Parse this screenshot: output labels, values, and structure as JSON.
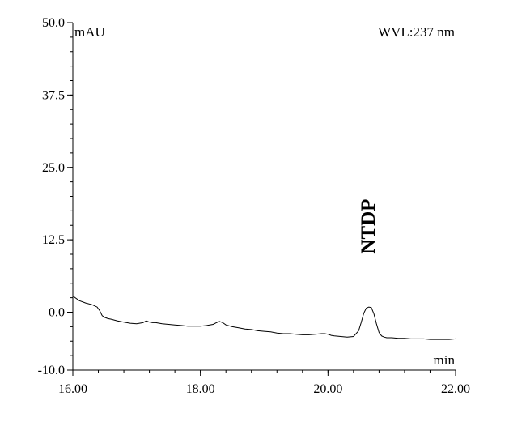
{
  "chart_data": {
    "type": "line",
    "y_unit": "mAU",
    "x_unit": "min",
    "wavelength_label": "WVL:237 nm",
    "xlim": [
      16.0,
      22.0
    ],
    "ylim": [
      -10.0,
      50.0
    ],
    "x_ticks": [
      {
        "value": 16.0,
        "label": "16.00"
      },
      {
        "value": 18.0,
        "label": "18.00"
      },
      {
        "value": 20.0,
        "label": "20.00"
      },
      {
        "value": 22.0,
        "label": "22.00"
      }
    ],
    "y_ticks": [
      {
        "value": 50.0,
        "label": "50.0"
      },
      {
        "value": 37.5,
        "label": "37.5"
      },
      {
        "value": 25.0,
        "label": "25.0"
      },
      {
        "value": 12.5,
        "label": "12.5"
      },
      {
        "value": 0.0,
        "label": "0.0"
      },
      {
        "value": -10.0,
        "label": "-10.0"
      }
    ],
    "x_minor_step": 0.4,
    "y_minor_step": 2.5,
    "series": [
      {
        "color": "#000000",
        "x": [
          16.0,
          16.1,
          16.2,
          16.3,
          16.38,
          16.42,
          16.46,
          16.5,
          16.55,
          16.6,
          16.7,
          16.8,
          16.9,
          17.0,
          17.1,
          17.15,
          17.2,
          17.25,
          17.3,
          17.4,
          17.5,
          17.6,
          17.7,
          17.8,
          17.9,
          18.0,
          18.1,
          18.2,
          18.25,
          18.3,
          18.35,
          18.4,
          18.5,
          18.6,
          18.7,
          18.8,
          18.9,
          19.0,
          19.1,
          19.2,
          19.3,
          19.4,
          19.5,
          19.6,
          19.7,
          19.8,
          19.9,
          19.95,
          20.0,
          20.05,
          20.1,
          20.2,
          20.3,
          20.4,
          20.48,
          20.52,
          20.56,
          20.6,
          20.64,
          20.68,
          20.72,
          20.76,
          20.8,
          20.84,
          20.88,
          20.92,
          21.0,
          21.1,
          21.2,
          21.3,
          21.4,
          21.5,
          21.6,
          21.7,
          21.8,
          21.9,
          22.0
        ],
        "y": [
          2.8,
          2.0,
          1.6,
          1.3,
          0.9,
          0.3,
          -0.6,
          -0.9,
          -1.1,
          -1.2,
          -1.5,
          -1.7,
          -1.9,
          -2.0,
          -1.8,
          -1.5,
          -1.7,
          -1.8,
          -1.8,
          -2.0,
          -2.1,
          -2.2,
          -2.3,
          -2.4,
          -2.4,
          -2.4,
          -2.3,
          -2.1,
          -1.8,
          -1.6,
          -1.8,
          -2.2,
          -2.5,
          -2.7,
          -2.9,
          -3.0,
          -3.2,
          -3.3,
          -3.4,
          -3.6,
          -3.7,
          -3.7,
          -3.8,
          -3.9,
          -3.9,
          -3.8,
          -3.7,
          -3.7,
          -3.8,
          -4.0,
          -4.1,
          -4.2,
          -4.3,
          -4.2,
          -3.2,
          -1.8,
          -0.2,
          0.7,
          0.9,
          0.8,
          -0.3,
          -2.0,
          -3.5,
          -4.1,
          -4.3,
          -4.4,
          -4.4,
          -4.5,
          -4.5,
          -4.6,
          -4.6,
          -4.6,
          -4.7,
          -4.7,
          -4.7,
          -4.7,
          -4.6
        ]
      }
    ],
    "annotations": [
      {
        "text": "NTDP",
        "x": 20.68,
        "y": 9.5
      }
    ],
    "grid": false
  }
}
